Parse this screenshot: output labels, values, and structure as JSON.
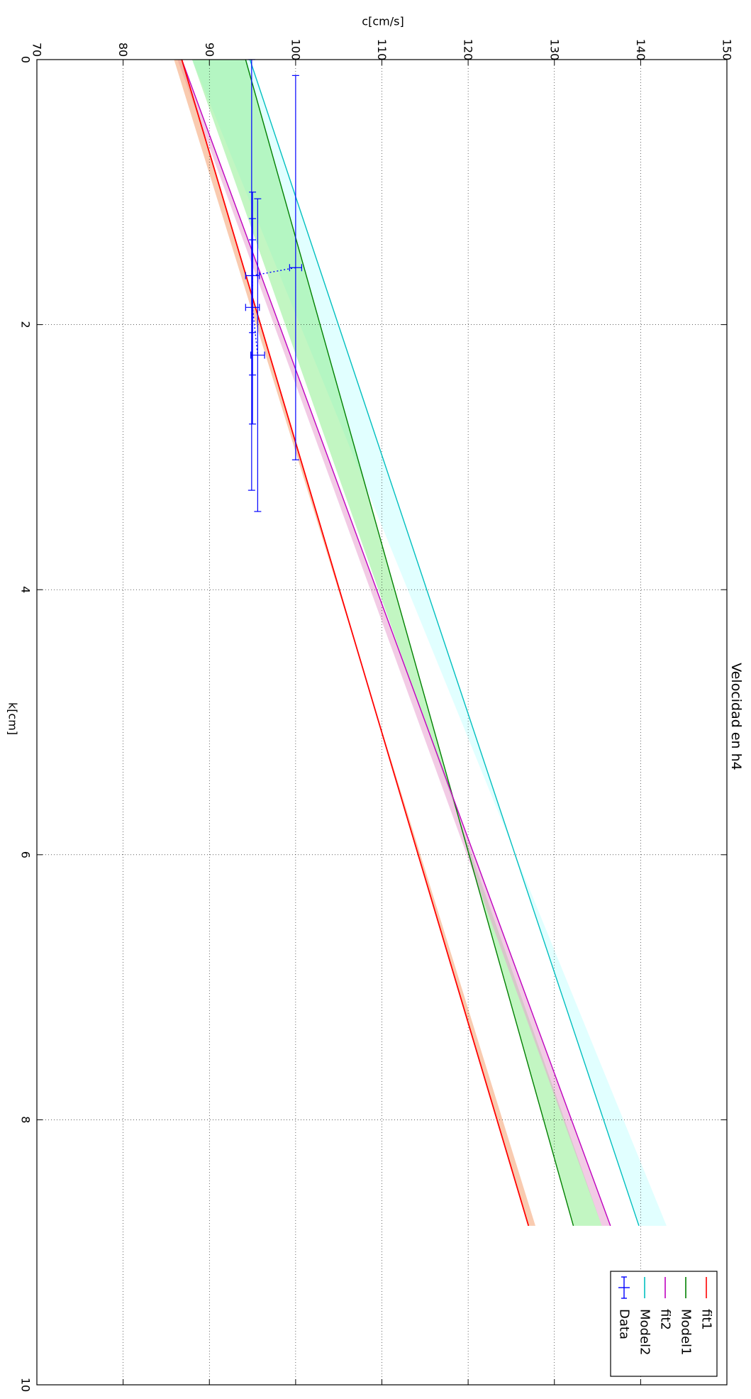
{
  "chart_data": {
    "type": "line",
    "title": "Velocidad en h4",
    "xlabel": "k[cm]",
    "ylabel": "c[cm/s]",
    "xlim": [
      0,
      10
    ],
    "ylim": [
      70,
      150
    ],
    "x_ticks": [
      0,
      2,
      4,
      6,
      8,
      10
    ],
    "y_ticks": [
      70,
      80,
      90,
      100,
      110,
      120,
      130,
      140,
      150
    ],
    "grid": true,
    "legend_position": "lower-right",
    "orientation": "rotated 90 degrees clockwise",
    "x_range": [
      0,
      8.8
    ],
    "series": [
      {
        "name": "fit1",
        "kind": "line",
        "color": "#ff0000",
        "start": [
          0,
          86.8
        ],
        "end": [
          8.8,
          127.0
        ],
        "band": {
          "color": "#f4a070",
          "start": [
            0,
            85.9
          ],
          "end": [
            8.8,
            127.8
          ]
        }
      },
      {
        "name": "Model1",
        "kind": "line",
        "color": "#008000",
        "start": [
          0,
          94.2
        ],
        "end": [
          8.8,
          132.2
        ],
        "band": {
          "color": "#90ee90",
          "start": [
            0,
            88.0
          ],
          "end": [
            8.8,
            135.5
          ]
        }
      },
      {
        "name": "fit2",
        "kind": "line",
        "color": "#bf00bf",
        "start": [
          0,
          86.8
        ],
        "end": [
          8.8,
          136.5
        ],
        "band": {
          "color": "#e8a0d0",
          "start": [
            0,
            86.3
          ],
          "end": [
            8.8,
            135.5
          ]
        }
      },
      {
        "name": "Model2",
        "kind": "line",
        "color": "#00bfbf",
        "start": [
          0,
          94.7
        ],
        "end": [
          8.8,
          139.8
        ],
        "band": {
          "color": "#c8ffff",
          "start": [
            0,
            88.0
          ],
          "end": [
            8.8,
            143.0
          ]
        }
      },
      {
        "name": "Data",
        "kind": "errorbar",
        "color": "#0000ff",
        "points": [
          {
            "x": 1.57,
            "y": 100.0,
            "xerr": 1.45,
            "yerr": 0.7
          },
          {
            "x": 1.63,
            "y": 95.0,
            "xerr": 0.43,
            "yerr": 0.8
          },
          {
            "x": 1.87,
            "y": 95.0,
            "xerr": 0.51,
            "yerr": 0.8
          },
          {
            "x": 2.23,
            "y": 95.6,
            "xerr": 1.18,
            "yerr": 0.8
          }
        ],
        "connect": [
          [
            1.57,
            100.0
          ],
          [
            1.63,
            95.0
          ],
          [
            1.87,
            95.0
          ],
          [
            2.23,
            95.6
          ]
        ],
        "extra_xbars": [
          {
            "y": 94.9,
            "x_from": 0.0,
            "x_to": 3.25
          },
          {
            "y": 95.0,
            "x_from": 1.0,
            "x_to": 2.75
          }
        ]
      }
    ]
  }
}
